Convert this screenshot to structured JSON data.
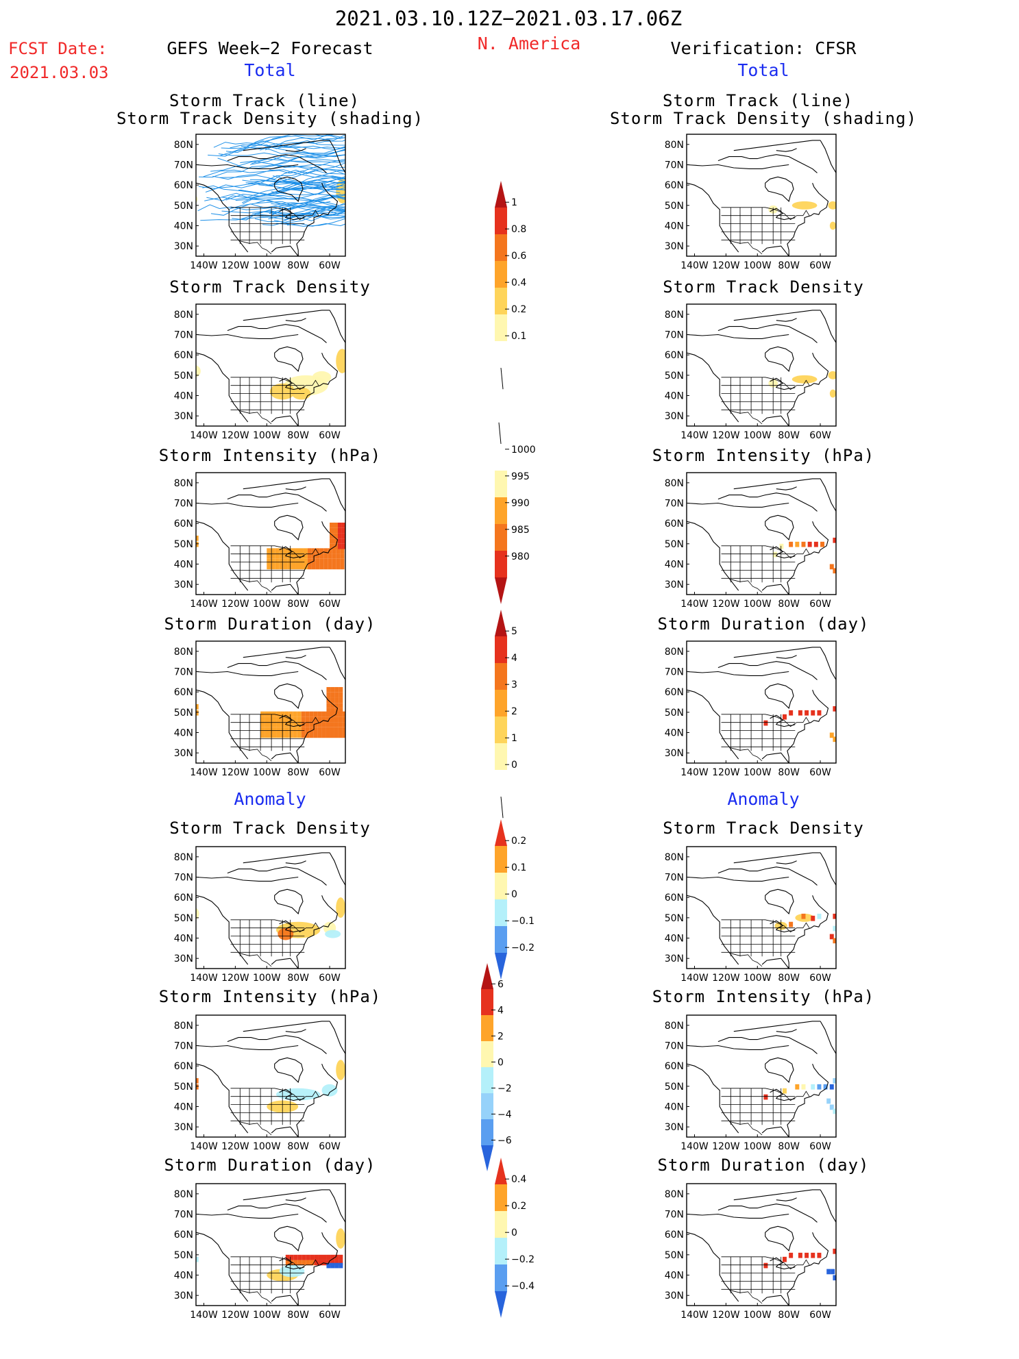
{
  "header": {
    "period": "2021.03.10.12Z−2021.03.17.06Z",
    "region": "N. America",
    "fcst_label": "FCST Date:",
    "fcst_date": "2021.03.03",
    "left_title": "GEFS Week−2 Forecast",
    "right_title": "Verification: CFSR"
  },
  "sections": {
    "total": "Total",
    "anomaly": "Anomaly"
  },
  "panel_titles": {
    "track_line_1": "Storm Track (line)",
    "track_line_2": "Storm Track Density (shading)",
    "track_density": "Storm Track Density",
    "intensity": "Storm Intensity (hPa)",
    "duration": "Storm Duration (day)"
  },
  "map_axes": {
    "lat_labels": [
      "80N",
      "70N",
      "60N",
      "50N",
      "40N",
      "30N"
    ],
    "lon_labels": [
      "140W",
      "120W",
      "100W",
      "80W",
      "60W"
    ]
  },
  "colorbars": {
    "density_total": [
      "1",
      "0.8",
      "0.6",
      "0.4",
      "0.2",
      "0.1"
    ],
    "intensity_total": [
      "1000",
      "995",
      "990",
      "985",
      "980"
    ],
    "duration_total": [
      "5",
      "4",
      "3",
      "2",
      "1",
      "0"
    ],
    "density_anom": [
      "0.2",
      "0.1",
      "0",
      "−0.1",
      "−0.2"
    ],
    "intensity_anom": [
      "6",
      "4",
      "2",
      "0",
      "−2",
      "−4",
      "−6"
    ],
    "duration_anom": [
      "0.4",
      "0.2",
      "0",
      "−0.2",
      "−0.4"
    ]
  },
  "colors": {
    "header_red": "#f02828",
    "section_blue": "#1a2cf0",
    "track_line": "#1e90e8",
    "warm": [
      "#fff7b0",
      "#fed45a",
      "#fea42a",
      "#f4761e",
      "#e6321e",
      "#b41414"
    ],
    "cool": [
      "#b4f0fa",
      "#96d2fa",
      "#5a9ef0",
      "#2864dc"
    ]
  }
}
